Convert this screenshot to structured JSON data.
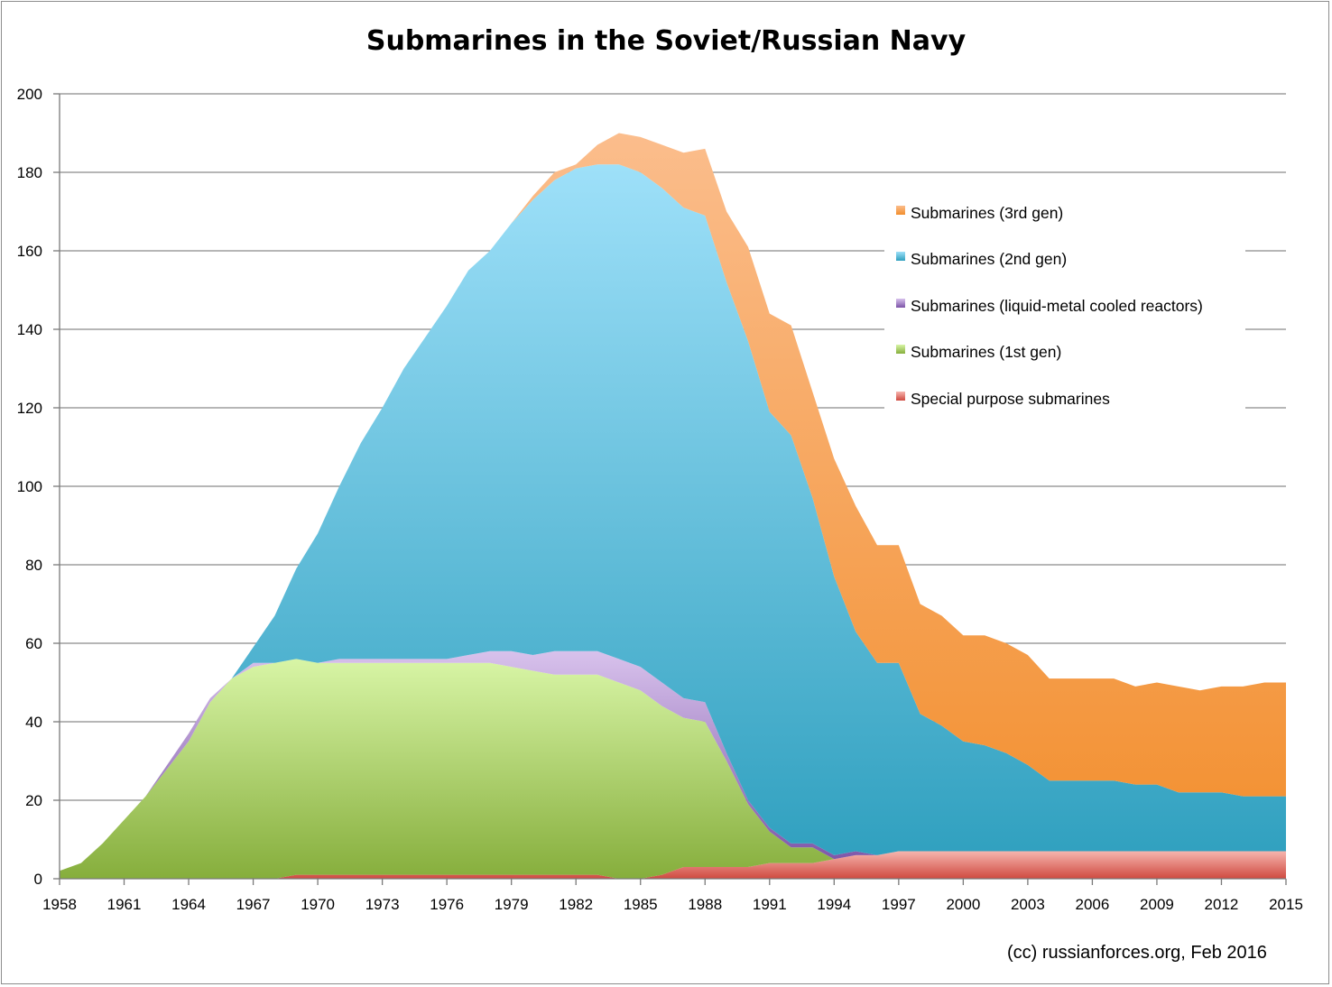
{
  "colors": {
    "grid": "#8a8a8a",
    "axis": "#7a7a7a",
    "third_gen": [
      "#fbbd8c",
      "#f28e2c"
    ],
    "second_gen": [
      "#9ee0f9",
      "#2e9fbe"
    ],
    "liquid_metal": [
      "#d8c2ec",
      "#7b52a6"
    ],
    "first_gen": [
      "#d8f5a6",
      "#86ae3c"
    ],
    "special": [
      "#f7b5ae",
      "#cf4a40"
    ]
  },
  "chart_data": {
    "type": "area",
    "stacked": true,
    "title": "Submarines in the Soviet/Russian Navy",
    "xlabel": "",
    "ylabel": "",
    "xlim": [
      1958,
      2015
    ],
    "ylim": [
      0,
      200
    ],
    "y_ticks": [
      0,
      20,
      40,
      60,
      80,
      100,
      120,
      140,
      160,
      180,
      200
    ],
    "x_tick_labels": [
      "1958",
      "1961",
      "1964",
      "1967",
      "1970",
      "1973",
      "1976",
      "1979",
      "1982",
      "1985",
      "1988",
      "1991",
      "1994",
      "1997",
      "2000",
      "2003",
      "2006",
      "2009",
      "2012",
      "2015"
    ],
    "grid": true,
    "legend_position": "right",
    "x": [
      1958,
      1959,
      1960,
      1961,
      1962,
      1963,
      1964,
      1965,
      1966,
      1967,
      1968,
      1969,
      1970,
      1971,
      1972,
      1973,
      1974,
      1975,
      1976,
      1977,
      1978,
      1979,
      1980,
      1981,
      1982,
      1983,
      1984,
      1985,
      1986,
      1987,
      1988,
      1989,
      1990,
      1991,
      1992,
      1993,
      1994,
      1995,
      1996,
      1997,
      1998,
      1999,
      2000,
      2001,
      2002,
      2003,
      2004,
      2005,
      2006,
      2007,
      2008,
      2009,
      2010,
      2011,
      2012,
      2013,
      2014,
      2015
    ],
    "series": [
      {
        "name": "Special purpose submarines",
        "values": [
          0,
          0,
          0,
          0,
          0,
          0,
          0,
          0,
          0,
          0,
          0,
          1,
          1,
          1,
          1,
          1,
          1,
          1,
          1,
          1,
          1,
          1,
          1,
          1,
          1,
          1,
          0,
          0,
          1,
          3,
          3,
          3,
          3,
          4,
          4,
          4,
          5,
          6,
          6,
          7,
          7,
          7,
          7,
          7,
          7,
          7,
          7,
          7,
          7,
          7,
          7,
          7,
          7,
          7,
          7,
          7,
          7,
          7
        ]
      },
      {
        "name": "Submarines (1st gen)",
        "values": [
          2,
          4,
          9,
          15,
          21,
          28,
          35,
          45,
          51,
          54,
          55,
          55,
          54,
          54,
          54,
          54,
          54,
          54,
          54,
          54,
          54,
          53,
          52,
          51,
          51,
          51,
          50,
          48,
          43,
          38,
          37,
          27,
          16,
          8,
          4,
          4,
          0,
          0,
          0,
          0,
          0,
          0,
          0,
          0,
          0,
          0,
          0,
          0,
          0,
          0,
          0,
          0,
          0,
          0,
          0,
          0,
          0,
          0
        ]
      },
      {
        "name": "Submarines (liquid-metal cooled reactors)",
        "values": [
          0,
          0,
          0,
          0,
          0,
          1,
          2,
          1,
          0,
          1,
          0,
          0,
          0,
          1,
          1,
          1,
          1,
          1,
          1,
          2,
          3,
          4,
          4,
          6,
          6,
          6,
          6,
          6,
          6,
          5,
          5,
          2,
          1,
          1,
          1,
          1,
          1,
          1,
          0,
          0,
          0,
          0,
          0,
          0,
          0,
          0,
          0,
          0,
          0,
          0,
          0,
          0,
          0,
          0,
          0,
          0,
          0,
          0
        ]
      },
      {
        "name": "Submarines (2nd gen)",
        "values": [
          0,
          0,
          0,
          0,
          0,
          0,
          0,
          0,
          0,
          4,
          12,
          23,
          33,
          44,
          55,
          64,
          74,
          82,
          90,
          98,
          102,
          109,
          116,
          120,
          123,
          124,
          126,
          126,
          126,
          125,
          124,
          120,
          117,
          106,
          104,
          88,
          71,
          56,
          49,
          48,
          35,
          32,
          28,
          27,
          25,
          22,
          18,
          18,
          18,
          18,
          17,
          17,
          15,
          15,
          15,
          14,
          14,
          14
        ]
      },
      {
        "name": "Submarines (3rd gen)",
        "values": [
          0,
          0,
          0,
          0,
          0,
          0,
          0,
          0,
          0,
          0,
          0,
          0,
          0,
          0,
          0,
          0,
          0,
          0,
          0,
          0,
          0,
          0,
          1,
          2,
          1,
          5,
          8,
          9,
          11,
          14,
          17,
          18,
          24,
          25,
          28,
          27,
          30,
          32,
          30,
          30,
          28,
          28,
          27,
          28,
          28,
          28,
          26,
          26,
          26,
          26,
          25,
          26,
          27,
          26,
          27,
          28,
          29,
          29
        ]
      }
    ]
  },
  "legend_items": [
    {
      "label": "Submarines (3rd gen)",
      "color_key": "third_gen"
    },
    {
      "label": "Submarines (2nd gen)",
      "color_key": "second_gen"
    },
    {
      "label": "Submarines (liquid-metal cooled reactors)",
      "color_key": "liquid_metal"
    },
    {
      "label": "Submarines (1st gen)",
      "color_key": "first_gen"
    },
    {
      "label": "Special purpose submarines",
      "color_key": "special"
    }
  ],
  "credit": "(cc) russianforces.org, Feb 2016"
}
